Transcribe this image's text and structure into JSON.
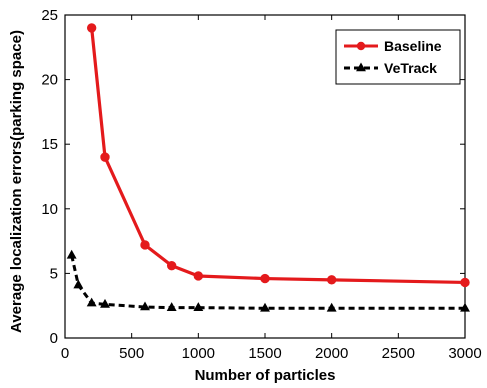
{
  "chart_data": {
    "type": "line",
    "xlabel": "Number of particles",
    "ylabel": "Average localization errors(parking space)",
    "xlim": [
      0,
      3000
    ],
    "ylim": [
      0,
      25
    ],
    "xticks": [
      0,
      500,
      1000,
      1500,
      2000,
      2500,
      3000
    ],
    "yticks": [
      0,
      5,
      10,
      15,
      20,
      25
    ],
    "grid": false,
    "legend_position": "top-right",
    "series": [
      {
        "name": "Baseline",
        "color": "#e41a1c",
        "line_style": "solid",
        "marker": "circle",
        "x": [
          200,
          300,
          600,
          800,
          1000,
          1500,
          2000,
          3000
        ],
        "y": [
          24.0,
          14.0,
          7.2,
          5.6,
          4.8,
          4.6,
          4.5,
          4.3
        ]
      },
      {
        "name": "VeTrack",
        "color": "#000000",
        "line_style": "dashed",
        "marker": "triangle",
        "x": [
          50,
          100,
          200,
          300,
          600,
          800,
          1000,
          1500,
          2000,
          3000
        ],
        "y": [
          6.4,
          4.1,
          2.7,
          2.6,
          2.4,
          2.35,
          2.35,
          2.3,
          2.3,
          2.3
        ]
      }
    ]
  }
}
